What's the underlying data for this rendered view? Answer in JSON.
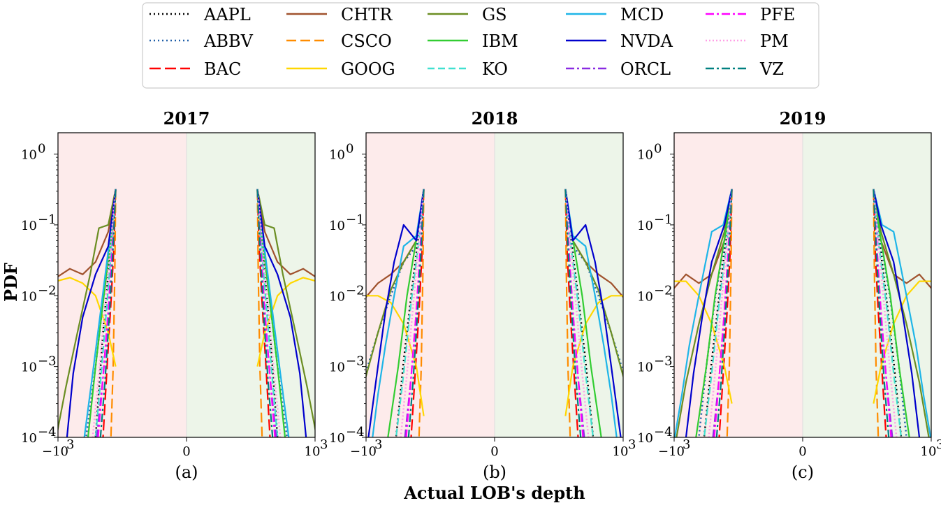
{
  "colors": {
    "AAPL": "#000000",
    "ABBV": "#1f5fa8",
    "BAC": "#ff0000",
    "CHTR": "#a0522d",
    "CSCO": "#ff8c00",
    "GOOG": "#ffd700",
    "GS": "#6b8e23",
    "IBM": "#32cd32",
    "KO": "#40e0d0",
    "MCD": "#1eb5e8",
    "NVDA": "#0000cd",
    "ORCL": "#8a2be2",
    "PFE": "#ff00ff",
    "PM": "#ffa0e6",
    "VZ": "#008080",
    "sell_shade": "#fdebeb",
    "buy_shade": "#edf5e9"
  },
  "legend": {
    "entries": [
      {
        "name": "AAPL",
        "dash": "2,4"
      },
      {
        "name": "ABBV",
        "dash": "2,4"
      },
      {
        "name": "BAC",
        "dash": "16,6"
      },
      {
        "name": "CHTR",
        "dash": ""
      },
      {
        "name": "CSCO",
        "dash": "14,6"
      },
      {
        "name": "GOOG",
        "dash": ""
      },
      {
        "name": "GS",
        "dash": ""
      },
      {
        "name": "IBM",
        "dash": ""
      },
      {
        "name": "KO",
        "dash": "10,5"
      },
      {
        "name": "MCD",
        "dash": ""
      },
      {
        "name": "NVDA",
        "dash": ""
      },
      {
        "name": "ORCL",
        "dash": "12,4,3,4"
      },
      {
        "name": "PFE",
        "dash": "12,4,3,4"
      },
      {
        "name": "PM",
        "dash": "2,3"
      },
      {
        "name": "VZ",
        "dash": "12,4,3,4"
      }
    ]
  },
  "figure": {
    "ylabel": "PDF",
    "xlabel": "Actual LOB's depth"
  },
  "chart_data": [
    {
      "type": "line",
      "title": "2017",
      "sublabel": "(a)",
      "xscale": "symlog",
      "yscale": "log",
      "xlim": [
        -1000,
        1000
      ],
      "ylim": [
        0.0001,
        2
      ],
      "xticks": [
        {
          "v": -1000,
          "base": "−10",
          "exp": "3"
        },
        {
          "v": 0,
          "base": "0",
          "exp": ""
        },
        {
          "v": 1000,
          "base": "10",
          "exp": "3"
        }
      ],
      "yticks": [
        {
          "v": 1,
          "exp": "0"
        },
        {
          "v": 0.1,
          "exp": "−1"
        },
        {
          "v": 0.01,
          "exp": "−2"
        },
        {
          "v": 0.001,
          "exp": "−3"
        },
        {
          "v": 0.0001,
          "exp": "−4"
        }
      ],
      "series": [
        {
          "name": "AAPL",
          "x": [
            1,
            1.2,
            1.5,
            2,
            3
          ],
          "y": [
            0.32,
            0.12,
            0.02,
            0.003,
            0.0001
          ]
        },
        {
          "name": "ABBV",
          "x": [
            1,
            1.3,
            2,
            3,
            5
          ],
          "y": [
            0.32,
            0.08,
            0.008,
            0.001,
            0.0001
          ]
        },
        {
          "name": "BAC",
          "x": [
            1,
            1.1,
            1.3,
            1.6,
            2
          ],
          "y": [
            0.32,
            0.05,
            0.008,
            0.001,
            0.0001
          ]
        },
        {
          "name": "CHTR",
          "x": [
            1,
            1.5,
            3,
            6,
            12,
            25,
            45,
            80,
            150,
            220
          ],
          "y": [
            0.32,
            0.08,
            0.03,
            0.02,
            0.024,
            0.018,
            0.007,
            0.002,
            0.0006,
            0.0001
          ]
        },
        {
          "name": "CSCO",
          "x": [
            1,
            1.05,
            1.15,
            1.3
          ],
          "y": [
            0.32,
            0.02,
            0.001,
            0.0001
          ]
        },
        {
          "name": "GOOG",
          "x": [
            1,
            1.5,
            3,
            6,
            12,
            25,
            45,
            80,
            150,
            200,
            210
          ],
          "y": [
            0.001,
            0.003,
            0.01,
            0.015,
            0.018,
            0.016,
            0.008,
            0.003,
            0.001,
            0.0002,
            0.0001
          ]
        },
        {
          "name": "GS",
          "x": [
            1,
            1.5,
            2.5,
            4,
            8,
            15,
            25
          ],
          "y": [
            0.32,
            0.1,
            0.09,
            0.02,
            0.003,
            0.0005,
            0.0001
          ]
        },
        {
          "name": "IBM",
          "x": [
            1,
            1.3,
            2,
            3,
            4.5
          ],
          "y": [
            0.32,
            0.06,
            0.008,
            0.001,
            0.0001
          ]
        },
        {
          "name": "KO",
          "x": [
            1,
            1.2,
            1.6,
            2.2,
            3
          ],
          "y": [
            0.32,
            0.07,
            0.008,
            0.0008,
            0.0001
          ]
        },
        {
          "name": "MCD",
          "x": [
            1,
            1.4,
            2.2,
            3.5,
            5.5
          ],
          "y": [
            0.32,
            0.06,
            0.007,
            0.0008,
            0.0001
          ]
        },
        {
          "name": "NVDA",
          "x": [
            1,
            1.5,
            3,
            6,
            10,
            14
          ],
          "y": [
            0.32,
            0.05,
            0.02,
            0.005,
            0.0008,
            0.0001
          ]
        },
        {
          "name": "ORCL",
          "x": [
            1,
            1.2,
            1.5,
            2,
            2.8
          ],
          "y": [
            0.32,
            0.05,
            0.006,
            0.0007,
            0.0001
          ]
        },
        {
          "name": "PFE",
          "x": [
            1,
            1.2,
            1.5,
            2,
            2.6
          ],
          "y": [
            0.32,
            0.05,
            0.006,
            0.0007,
            0.0001
          ]
        },
        {
          "name": "PM",
          "x": [
            1,
            1.3,
            1.8,
            2.5,
            3.5
          ],
          "y": [
            0.32,
            0.06,
            0.007,
            0.0008,
            0.0001
          ]
        },
        {
          "name": "VZ",
          "x": [
            1,
            1.15,
            1.4,
            1.8,
            2.3
          ],
          "y": [
            0.32,
            0.05,
            0.006,
            0.0006,
            0.0001
          ]
        }
      ]
    },
    {
      "type": "line",
      "title": "2018",
      "sublabel": "(b)",
      "xscale": "symlog",
      "yscale": "log",
      "xlim": [
        -1000,
        1000
      ],
      "ylim": [
        0.0001,
        2
      ],
      "xticks": [
        {
          "v": -1000,
          "base": "−10",
          "exp": "3"
        },
        {
          "v": 0,
          "base": "0",
          "exp": ""
        },
        {
          "v": 1000,
          "base": "10",
          "exp": "3"
        }
      ],
      "yticks": [
        {
          "v": 1,
          "exp": "0"
        },
        {
          "v": 0.1,
          "exp": "−1"
        },
        {
          "v": 0.01,
          "exp": "−2"
        },
        {
          "v": 0.001,
          "exp": "−3"
        },
        {
          "v": 0.0001,
          "exp": "−4"
        }
      ],
      "series": [
        {
          "name": "AAPL",
          "x": [
            1,
            1.3,
            2,
            3,
            4.5
          ],
          "y": [
            0.32,
            0.08,
            0.01,
            0.0012,
            0.0001
          ]
        },
        {
          "name": "ABBV",
          "x": [
            1,
            1.5,
            3,
            6,
            12,
            25,
            45
          ],
          "y": [
            0.32,
            0.05,
            0.03,
            0.01,
            0.003,
            0.0007,
            0.0001
          ]
        },
        {
          "name": "BAC",
          "x": [
            1,
            1.1,
            1.3,
            1.6,
            2
          ],
          "y": [
            0.32,
            0.04,
            0.006,
            0.0008,
            0.0001
          ]
        },
        {
          "name": "CHTR",
          "x": [
            1,
            1.5,
            3,
            6,
            12,
            25,
            45,
            80,
            110
          ],
          "y": [
            0.32,
            0.06,
            0.03,
            0.02,
            0.015,
            0.009,
            0.003,
            0.0005,
            0.0001
          ]
        },
        {
          "name": "CSCO",
          "x": [
            1,
            1.05,
            1.15,
            1.3
          ],
          "y": [
            0.32,
            0.02,
            0.001,
            0.0001
          ]
        },
        {
          "name": "GOOG",
          "x": [
            1,
            1.5,
            3,
            6,
            12,
            25,
            45,
            80,
            120,
            150
          ],
          "y": [
            0.0002,
            0.001,
            0.004,
            0.008,
            0.01,
            0.01,
            0.004,
            0.001,
            0.0003,
            0.0001
          ]
        },
        {
          "name": "GS",
          "x": [
            1,
            1.5,
            3,
            6,
            12,
            25,
            50
          ],
          "y": [
            0.32,
            0.06,
            0.03,
            0.012,
            0.003,
            0.0006,
            0.0001
          ]
        },
        {
          "name": "IBM",
          "x": [
            1,
            1.4,
            2.5,
            4,
            7
          ],
          "y": [
            0.32,
            0.08,
            0.01,
            0.001,
            0.0001
          ]
        },
        {
          "name": "KO",
          "x": [
            1,
            1.3,
            2,
            3,
            4.5
          ],
          "y": [
            0.32,
            0.06,
            0.008,
            0.0008,
            0.0001
          ]
        },
        {
          "name": "MCD",
          "x": [
            1,
            1.5,
            3,
            5,
            8,
            12,
            16
          ],
          "y": [
            0.32,
            0.07,
            0.05,
            0.01,
            0.002,
            0.0004,
            0.0001
          ]
        },
        {
          "name": "NVDA",
          "x": [
            1,
            1.5,
            3,
            5,
            8,
            12,
            20
          ],
          "y": [
            0.32,
            0.06,
            0.1,
            0.03,
            0.006,
            0.001,
            0.0001
          ]
        },
        {
          "name": "ORCL",
          "x": [
            1,
            1.2,
            1.5,
            2,
            2.8
          ],
          "y": [
            0.32,
            0.05,
            0.006,
            0.0007,
            0.0001
          ]
        },
        {
          "name": "PFE",
          "x": [
            1,
            1.2,
            1.5,
            2,
            2.6
          ],
          "y": [
            0.32,
            0.05,
            0.006,
            0.0007,
            0.0001
          ]
        },
        {
          "name": "PM",
          "x": [
            1,
            1.3,
            1.8,
            2.5,
            3.5
          ],
          "y": [
            0.32,
            0.06,
            0.007,
            0.0008,
            0.0001
          ]
        },
        {
          "name": "VZ",
          "x": [
            1,
            1.15,
            1.4,
            1.8,
            2.3
          ],
          "y": [
            0.32,
            0.05,
            0.006,
            0.0006,
            0.0001
          ]
        }
      ]
    },
    {
      "type": "line",
      "title": "2019",
      "sublabel": "(c)",
      "xscale": "symlog",
      "yscale": "log",
      "xlim": [
        -1000,
        1000
      ],
      "ylim": [
        0.0001,
        2
      ],
      "xticks": [
        {
          "v": -1000,
          "base": "−10",
          "exp": "3"
        },
        {
          "v": 0,
          "base": "0",
          "exp": ""
        },
        {
          "v": 1000,
          "base": "10",
          "exp": "3"
        }
      ],
      "yticks": [
        {
          "v": 1,
          "exp": "0"
        },
        {
          "v": 0.1,
          "exp": "−1"
        },
        {
          "v": 0.01,
          "exp": "−2"
        },
        {
          "v": 0.001,
          "exp": "−3"
        },
        {
          "v": 0.0001,
          "exp": "−4"
        }
      ],
      "series": [
        {
          "name": "AAPL",
          "x": [
            1,
            1.3,
            2,
            3,
            4.5
          ],
          "y": [
            0.32,
            0.08,
            0.01,
            0.0012,
            0.0001
          ]
        },
        {
          "name": "ABBV",
          "x": [
            1,
            1.4,
            2.5,
            4,
            6
          ],
          "y": [
            0.32,
            0.07,
            0.009,
            0.001,
            0.0001
          ]
        },
        {
          "name": "BAC",
          "x": [
            1,
            1.1,
            1.3,
            1.6,
            2
          ],
          "y": [
            0.32,
            0.04,
            0.006,
            0.0008,
            0.0001
          ]
        },
        {
          "name": "CHTR",
          "x": [
            1,
            1.5,
            3,
            6,
            12,
            25,
            45,
            80,
            130
          ],
          "y": [
            0.32,
            0.06,
            0.02,
            0.015,
            0.02,
            0.012,
            0.004,
            0.0008,
            0.0001
          ]
        },
        {
          "name": "CSCO",
          "x": [
            1,
            1.05,
            1.15,
            1.3
          ],
          "y": [
            0.32,
            0.02,
            0.001,
            0.0001
          ]
        },
        {
          "name": "GOOG",
          "x": [
            1,
            1.5,
            3,
            6,
            12,
            25,
            45,
            80,
            140,
            190
          ],
          "y": [
            0.0003,
            0.001,
            0.004,
            0.01,
            0.016,
            0.016,
            0.006,
            0.0015,
            0.0003,
            0.0001
          ]
        },
        {
          "name": "GS",
          "x": [
            1,
            1.5,
            3,
            6,
            12,
            20
          ],
          "y": [
            0.32,
            0.08,
            0.02,
            0.004,
            0.0006,
            0.0001
          ]
        },
        {
          "name": "IBM",
          "x": [
            1,
            1.4,
            2.5,
            4,
            7
          ],
          "y": [
            0.32,
            0.08,
            0.01,
            0.001,
            0.0001
          ]
        },
        {
          "name": "KO",
          "x": [
            1,
            1.3,
            2,
            3,
            4.5
          ],
          "y": [
            0.32,
            0.06,
            0.008,
            0.0008,
            0.0001
          ]
        },
        {
          "name": "MCD",
          "x": [
            1,
            1.6,
            3,
            6,
            10,
            15,
            22
          ],
          "y": [
            0.32,
            0.1,
            0.08,
            0.01,
            0.002,
            0.0004,
            0.0001
          ]
        },
        {
          "name": "NVDA",
          "x": [
            1,
            1.5,
            3,
            5,
            8,
            12
          ],
          "y": [
            0.32,
            0.1,
            0.03,
            0.005,
            0.0008,
            0.0001
          ]
        },
        {
          "name": "ORCL",
          "x": [
            1,
            1.2,
            1.5,
            2,
            2.8
          ],
          "y": [
            0.32,
            0.05,
            0.006,
            0.0007,
            0.0001
          ]
        },
        {
          "name": "PFE",
          "x": [
            1,
            1.2,
            1.5,
            2,
            2.6
          ],
          "y": [
            0.32,
            0.05,
            0.006,
            0.0007,
            0.0001
          ]
        },
        {
          "name": "PM",
          "x": [
            1,
            1.3,
            1.8,
            2.5,
            3.5
          ],
          "y": [
            0.32,
            0.06,
            0.007,
            0.0008,
            0.0001
          ]
        },
        {
          "name": "VZ",
          "x": [
            1,
            1.15,
            1.4,
            1.8,
            2.3
          ],
          "y": [
            0.32,
            0.05,
            0.006,
            0.0006,
            0.0001
          ]
        }
      ]
    }
  ]
}
